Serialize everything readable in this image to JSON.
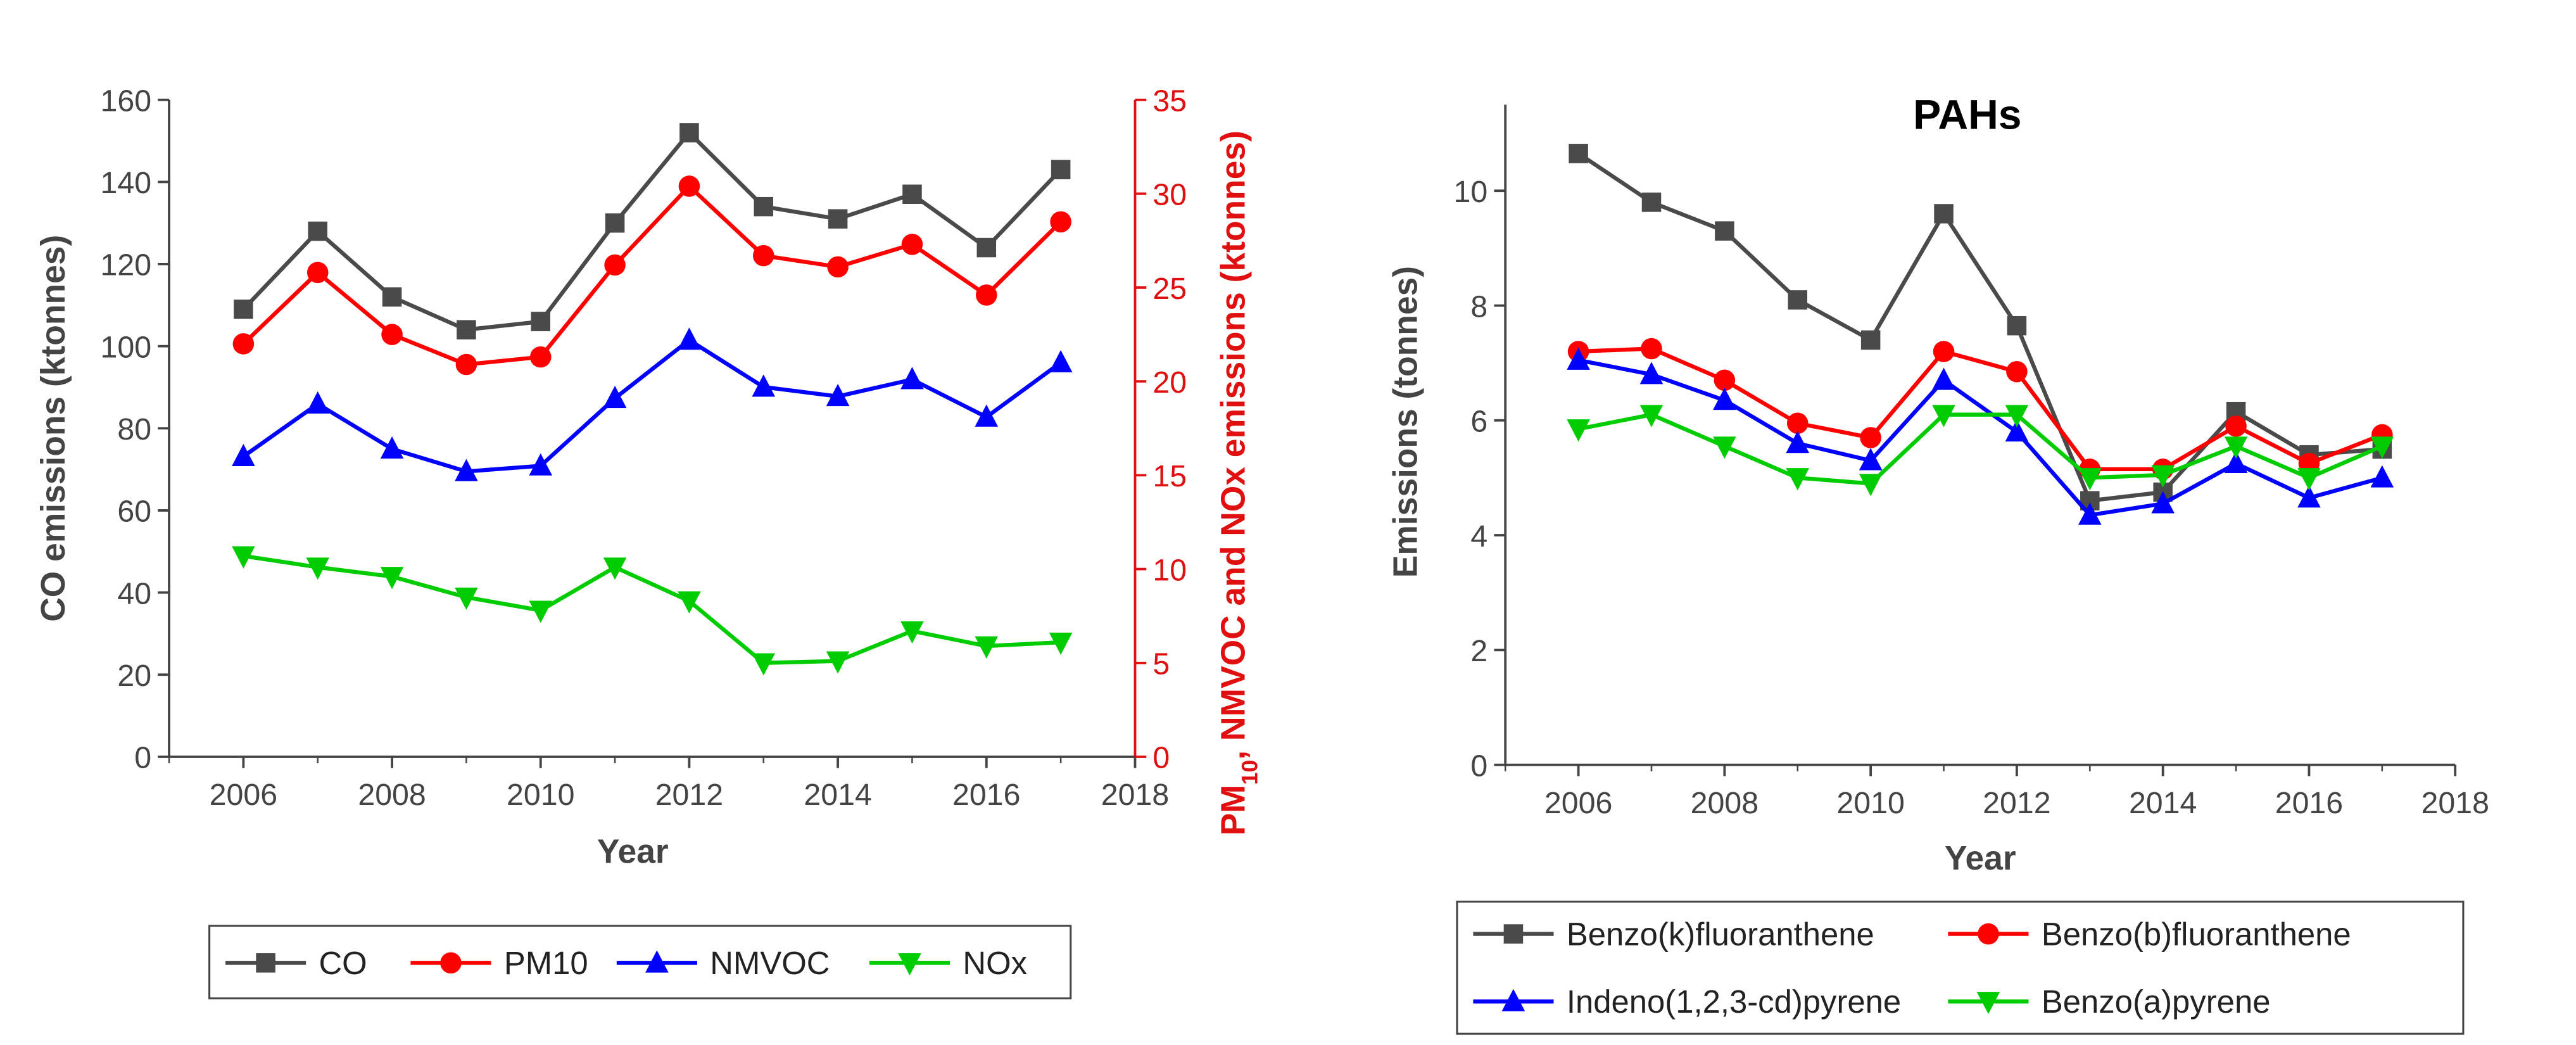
{
  "chart_data": [
    {
      "type": "line",
      "title": "",
      "xlabel": "Year",
      "ylabel": "CO emissions (ktonnes)",
      "y2label": "PM10, NMVOC and NOx emissions (ktonnes)",
      "y2label_parts": {
        "pre": "PM",
        "sub": "10",
        "post": ", NMVOC and NOx emissions (ktonnes)"
      },
      "xlim": [
        2005,
        2018
      ],
      "ylim": [
        0,
        160
      ],
      "y2lim": [
        0,
        35
      ],
      "xticks": [
        "2006",
        "2008",
        "2010",
        "2012",
        "2014",
        "2016",
        "2018"
      ],
      "yticks": [
        "0",
        "20",
        "40",
        "60",
        "80",
        "100",
        "120",
        "140",
        "160"
      ],
      "y2ticks": [
        "0",
        "5",
        "10",
        "15",
        "20",
        "25",
        "30",
        "35"
      ],
      "x": [
        2006,
        2007,
        2008,
        2009,
        2010,
        2011,
        2012,
        2013,
        2014,
        2015,
        2016,
        2017
      ],
      "legend_position": "bottom",
      "series": [
        {
          "name": "CO",
          "axis": "left",
          "color": "#4a4a4a",
          "marker": "square",
          "values": [
            109,
            128,
            112,
            104,
            106,
            130,
            152,
            134,
            131,
            137,
            124,
            143
          ]
        },
        {
          "name": "PM10",
          "axis": "right",
          "color": "#ff0000",
          "marker": "circle",
          "values": [
            22.0,
            25.8,
            22.5,
            20.9,
            21.3,
            26.2,
            30.4,
            26.7,
            26.1,
            27.3,
            24.6,
            28.5
          ]
        },
        {
          "name": "NMVOC",
          "axis": "right",
          "color": "#0000ff",
          "marker": "triangle-up",
          "values": [
            16.0,
            18.8,
            16.4,
            15.2,
            15.5,
            19.1,
            22.2,
            19.7,
            19.2,
            20.1,
            18.1,
            21.0
          ]
        },
        {
          "name": "NOx",
          "axis": "right",
          "color": "#00cc00",
          "marker": "triangle-down",
          "values": [
            10.7,
            10.1,
            9.6,
            8.5,
            7.8,
            10.1,
            8.3,
            5.0,
            5.1,
            6.7,
            5.9,
            6.1
          ]
        }
      ]
    },
    {
      "type": "line",
      "title": "PAHs",
      "xlabel": "Year",
      "ylabel": "Emissions (tonnes)",
      "xlim": [
        2005,
        2018
      ],
      "ylim": [
        0,
        11.5
      ],
      "xticks": [
        "2006",
        "2008",
        "2010",
        "2012",
        "2014",
        "2016",
        "2018"
      ],
      "yticks": [
        "0",
        "2",
        "4",
        "6",
        "8",
        "10"
      ],
      "x": [
        2006,
        2007,
        2008,
        2009,
        2010,
        2011,
        2012,
        2013,
        2014,
        2015,
        2016,
        2017
      ],
      "legend_position": "bottom",
      "series": [
        {
          "name": "Benzo(k)fluoranthene",
          "color": "#4a4a4a",
          "marker": "square",
          "values": [
            10.65,
            9.8,
            9.3,
            8.1,
            7.4,
            9.6,
            7.65,
            4.6,
            4.75,
            6.15,
            5.4,
            5.5
          ]
        },
        {
          "name": "Benzo(b)fluoranthene",
          "color": "#ff0000",
          "marker": "circle",
          "values": [
            7.2,
            7.25,
            6.7,
            5.95,
            5.7,
            7.2,
            6.85,
            5.15,
            5.15,
            5.9,
            5.25,
            5.75
          ]
        },
        {
          "name": "Indeno(1,2,3-cd)pyrene",
          "color": "#0000ff",
          "marker": "triangle-up",
          "values": [
            7.05,
            6.8,
            6.35,
            5.6,
            5.3,
            6.7,
            5.8,
            4.35,
            4.55,
            5.25,
            4.65,
            5.0
          ]
        },
        {
          "name": "Benzo(a)pyrene",
          "color": "#00cc00",
          "marker": "triangle-down",
          "values": [
            5.85,
            6.1,
            5.55,
            5.0,
            4.9,
            6.1,
            6.1,
            5.0,
            5.05,
            5.55,
            5.0,
            5.55
          ]
        }
      ]
    }
  ]
}
